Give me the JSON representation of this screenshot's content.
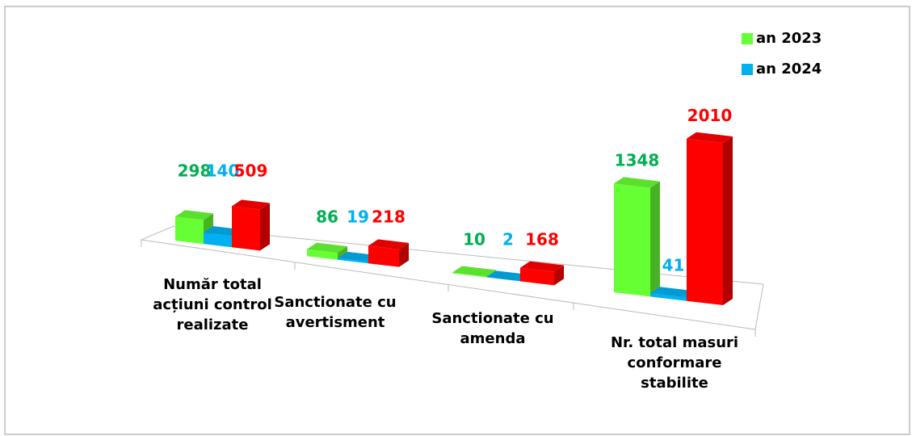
{
  "chart_data": {
    "type": "bar3d",
    "categories": [
      "Număr total acțiuni control realizate",
      "Sanctionate cu avertisment",
      "Sanctionate cu amenda",
      "Nr. total masuri conformare stabilite"
    ],
    "series": [
      {
        "name": "an 2023",
        "color": "#66ff33",
        "label_color": "#00b050",
        "values": [
          298,
          86,
          10,
          1348
        ]
      },
      {
        "name": "an 2024",
        "color": "#00b0f0",
        "label_color": "#00b0f0",
        "values": [
          140,
          19,
          2,
          41
        ]
      },
      {
        "color": "#ff0000",
        "label_color": "#ff0000",
        "values": [
          509,
          218,
          168,
          2010
        ]
      }
    ],
    "legend": "top-right"
  }
}
